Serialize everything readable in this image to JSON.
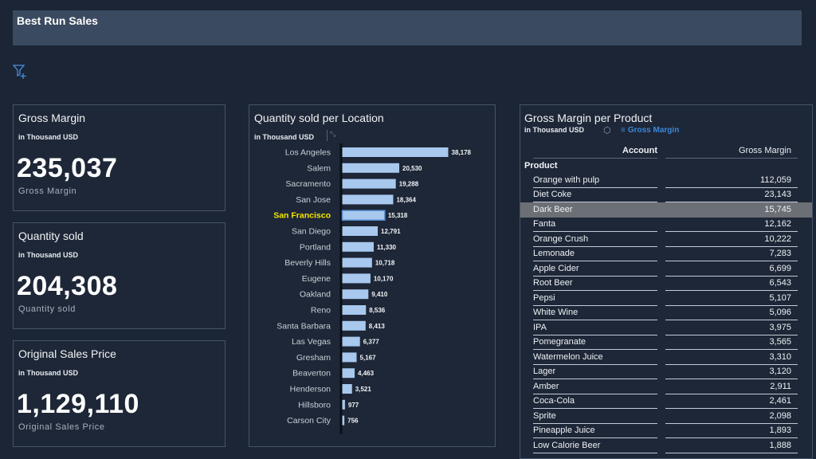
{
  "header": {
    "title": "Best Run Sales"
  },
  "toolbar": {
    "filter_icon": "filter-add-icon"
  },
  "kpis": [
    {
      "title": "Gross Margin",
      "unit": "in Thousand USD",
      "value": "235,037",
      "label": "Gross Margin"
    },
    {
      "title": "Quantity sold",
      "unit": "in Thousand USD",
      "value": "204,308",
      "label": "Quantity sold"
    },
    {
      "title": "Original Sales Price",
      "unit": "in Thousand USD",
      "value": "1,129,110",
      "label": "Original Sales Price"
    }
  ],
  "quantity_chart": {
    "title": "Quantity sold per Location",
    "unit": "in Thousand USD",
    "highlight_color": "#f5e600"
  },
  "chart_data": {
    "type": "bar",
    "orientation": "horizontal",
    "title": "Quantity sold per Location",
    "subtitle": "in Thousand USD",
    "categories": [
      "Los Angeles",
      "Salem",
      "Sacramento",
      "San Jose",
      "San Francisco",
      "San Diego",
      "Portland",
      "Beverly Hills",
      "Eugene",
      "Oakland",
      "Reno",
      "Santa Barbara",
      "Las Vegas",
      "Gresham",
      "Beaverton",
      "Henderson",
      "Hillsboro",
      "Carson City"
    ],
    "values": [
      38178,
      20530,
      19288,
      18364,
      15318,
      12791,
      11330,
      10718,
      10170,
      9410,
      8536,
      8413,
      6377,
      5167,
      4463,
      3521,
      977,
      756
    ],
    "value_labels": [
      "38,178",
      "20,530",
      "19,288",
      "18,364",
      "15,318",
      "12,791",
      "11,330",
      "10,718",
      "10,170",
      "9,410",
      "8,536",
      "8,413",
      "6,377",
      "5,167",
      "4,463",
      "3,521",
      "977",
      "756"
    ],
    "highlighted_category": "San Francisco",
    "bar_color": "#a8c8ee",
    "xlim": [
      0,
      38178
    ],
    "grid": false,
    "legend": "none"
  },
  "product_table": {
    "title": "Gross Margin per Product",
    "unit": "in Thousand USD",
    "filter_label": "Gross Margin",
    "columns": {
      "account": "Account",
      "measure": "Gross Margin"
    },
    "group_label": "Product",
    "selected_row": "Dark Beer",
    "rows": [
      {
        "name": "Orange with pulp",
        "value": "112,059"
      },
      {
        "name": "Diet Coke",
        "value": "23,143"
      },
      {
        "name": "Dark Beer",
        "value": "15,745"
      },
      {
        "name": "Fanta",
        "value": "12,162"
      },
      {
        "name": "Orange Crush",
        "value": "10,222"
      },
      {
        "name": "Lemonade",
        "value": "7,283"
      },
      {
        "name": "Apple Cider",
        "value": "6,699"
      },
      {
        "name": "Root Beer",
        "value": "6,543"
      },
      {
        "name": "Pepsi",
        "value": "5,107"
      },
      {
        "name": "White Wine",
        "value": "5,096"
      },
      {
        "name": "IPA",
        "value": "3,975"
      },
      {
        "name": "Pomegranate",
        "value": "3,565"
      },
      {
        "name": "Watermelon Juice",
        "value": "3,310"
      },
      {
        "name": "Lager",
        "value": "3,120"
      },
      {
        "name": "Amber",
        "value": "2,911"
      },
      {
        "name": "Coca-Cola",
        "value": "2,461"
      },
      {
        "name": "Sprite",
        "value": "2,098"
      },
      {
        "name": "Pineapple Juice",
        "value": "1,893"
      },
      {
        "name": "Low Calorie Beer",
        "value": "1,888"
      }
    ]
  }
}
